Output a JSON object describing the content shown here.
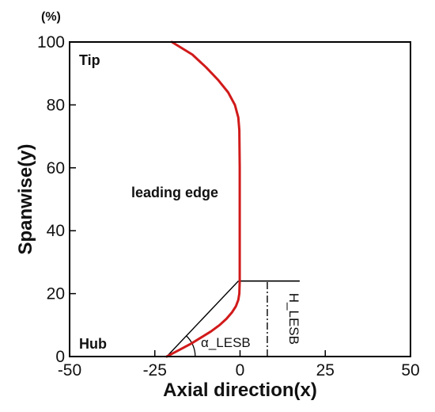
{
  "chart_data": {
    "type": "line",
    "xlabel": "Axial direction(x)",
    "ylabel": "Spanwise(y)",
    "y_unit": "(%)",
    "xlim": [
      -50,
      50
    ],
    "ylim": [
      0,
      100
    ],
    "xticks": [
      -50,
      -25,
      0,
      25,
      50
    ],
    "yticks": [
      0,
      20,
      40,
      60,
      80,
      100
    ],
    "grid": false,
    "series": [
      {
        "color": "#d11a1a",
        "points": [
          [
            -21.5,
            0
          ],
          [
            -18,
            2
          ],
          [
            -14.5,
            4
          ],
          [
            -11.5,
            6
          ],
          [
            -8.5,
            8
          ],
          [
            -6,
            10
          ],
          [
            -4,
            12
          ],
          [
            -2.4,
            14
          ],
          [
            -1.2,
            16
          ],
          [
            -0.5,
            18
          ],
          [
            -0.2,
            20
          ],
          [
            -0.1,
            24
          ],
          [
            -0.1,
            40
          ],
          [
            -0.1,
            60
          ],
          [
            -0.2,
            72
          ],
          [
            -0.5,
            76
          ],
          [
            -1.5,
            80
          ],
          [
            -3.5,
            84
          ],
          [
            -6.5,
            88
          ],
          [
            -10,
            92
          ],
          [
            -14,
            96
          ],
          [
            -20,
            100
          ]
        ]
      }
    ],
    "annotations": {
      "tip_label": "Tip",
      "hub_label": "Hub",
      "leading_edge_label": "leading edge",
      "angle_label": "α_LESB",
      "height_label": "H_LESB"
    },
    "construction_lines": {
      "diagonal": [
        [
          -21.5,
          0
        ],
        [
          -0.5,
          24
        ]
      ],
      "horizontal": [
        [
          -0.5,
          24
        ],
        [
          17.5,
          24
        ]
      ],
      "dashdot_vertical": [
        [
          8,
          0
        ],
        [
          8,
          24
        ]
      ]
    }
  }
}
